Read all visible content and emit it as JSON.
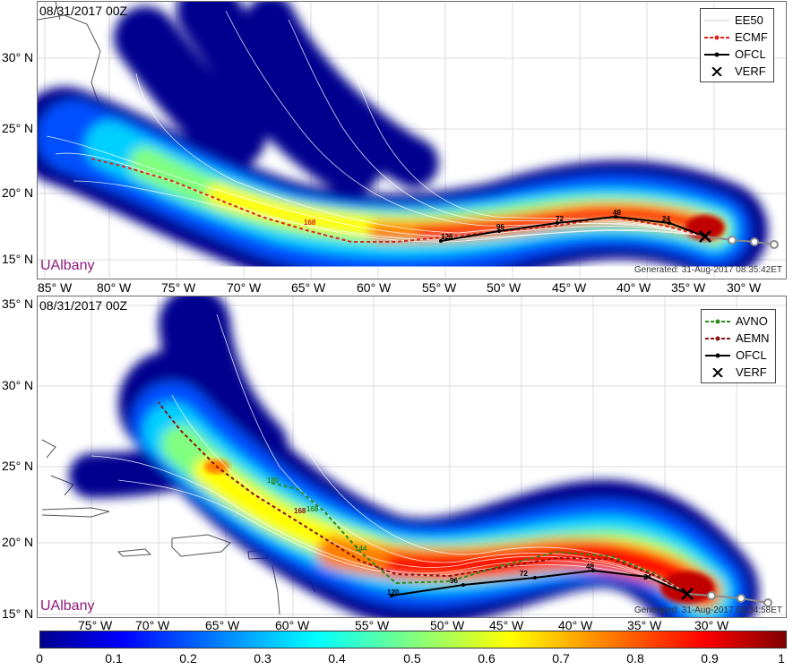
{
  "top_panel": {
    "title": "08/31/2017 00Z",
    "brand": "UAlbany",
    "generated": "Generated: 31-Aug-2017 08:35:42ET",
    "legend": [
      {
        "label": "EE50",
        "style": "white-lines",
        "color": "#ffffff"
      },
      {
        "label": "ECMF",
        "style": "dashed-dot",
        "color": "#e0231c"
      },
      {
        "label": "OFCL",
        "style": "solid-dot",
        "color": "#000000"
      },
      {
        "label": "VERF",
        "style": "x-marker",
        "color": "#000000"
      }
    ],
    "y_ticks": [
      "30° N",
      "25° N",
      "20° N",
      "15° N"
    ],
    "x_ticks": [
      "85° W",
      "80° W",
      "75° W",
      "70° W",
      "65° W",
      "60° W",
      "55° W",
      "50° W",
      "45° W",
      "40° W",
      "35° W",
      "30° W"
    ],
    "ofcl_labels": [
      "120",
      "96",
      "72",
      "48",
      "24"
    ],
    "ecmf_labels": [
      "168"
    ]
  },
  "bottom_panel": {
    "title": "08/31/2017 00Z",
    "brand": "UAlbany",
    "generated": "Generated: 31-Aug-2017 08:34:58ET",
    "legend": [
      {
        "label": "AVNO",
        "style": "dashed-dot",
        "color": "#2a8a1e"
      },
      {
        "label": "AEMN",
        "style": "dashed-dot",
        "color": "#8a1010"
      },
      {
        "label": "OFCL",
        "style": "solid-dot",
        "color": "#000000"
      },
      {
        "label": "VERF",
        "style": "x-marker",
        "color": "#000000"
      }
    ],
    "y_ticks": [
      "35° N",
      "30° N",
      "25° N",
      "20° N",
      "15° N"
    ],
    "x_ticks": [
      "75° W",
      "70° W",
      "65° W",
      "60° W",
      "55° W",
      "50° W",
      "45° W",
      "40° W",
      "35° W",
      "30° W"
    ],
    "ofcl_labels": [
      "120",
      "96",
      "72",
      "48",
      "24"
    ],
    "avno_labels": [
      "180",
      "168",
      "144"
    ],
    "aemn_labels": [
      "168"
    ]
  },
  "colorbar": {
    "ticks": [
      "0",
      "0.1",
      "0.2",
      "0.3",
      "0.4",
      "0.5",
      "0.6",
      "0.7",
      "0.8",
      "0.9",
      "1"
    ],
    "colormap": "jet"
  }
}
